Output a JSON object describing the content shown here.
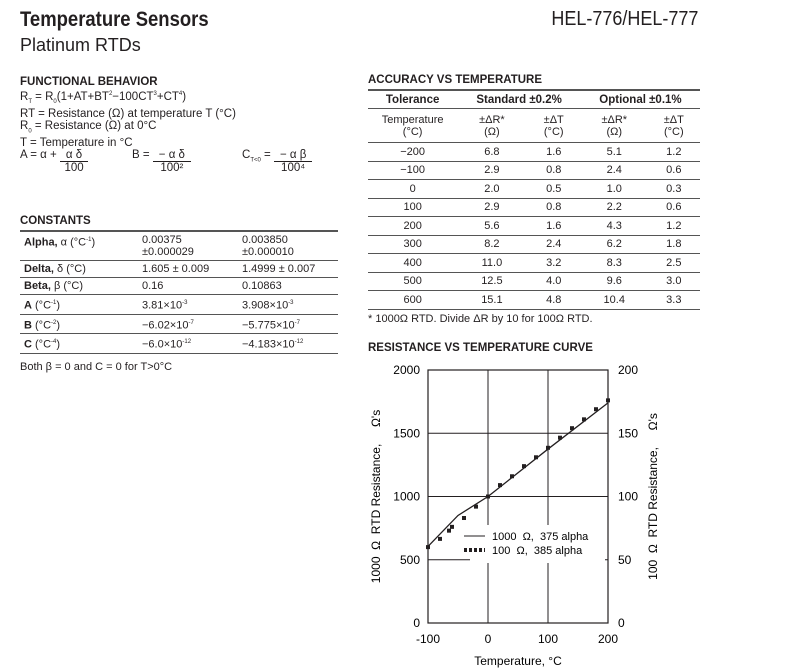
{
  "header": {
    "title": "Temperature Sensors",
    "subtitle": "Platinum RTDs",
    "model": "HEL-776/HEL-777"
  },
  "functional": {
    "heading": "FUNCTIONAL BEHAVIOR",
    "line1": "R<sub>T</sub> = R<sub>0</sub>(1+AT+BT<sup>2</sup>−100CT<sup>3</sup>+CT<sup>4</sup>)",
    "line2": "RT = Resistance (Ω) at temperature T (°C)",
    "line3": "R<sub>0</sub> = Resistance (Ω) at 0°C",
    "line4": "T = Temperature in °C",
    "a_lhs": "A = α + ",
    "a_num": "α δ",
    "a_den": "100",
    "b_lhs": "B = ",
    "b_num": "− α δ",
    "b_den": "100²",
    "c_lhs": "C<sub>T<0</sub> = ",
    "c_num": "− α β",
    "c_den": "100⁴"
  },
  "constants": {
    "heading": "CONSTANTS",
    "rows": [
      [
        "<b>Alpha,</b> α (°C<sup>-1</sup>)",
        "0.00375<br>±0.000029",
        "0.003850<br>±0.000010"
      ],
      [
        "<b>Delta,</b> δ (°C)",
        "1.605 ± 0.009",
        "1.4999 ± 0.007"
      ],
      [
        "<b>Beta,</b> β (°C)",
        "0.16",
        "0.10863"
      ],
      [
        "<b>A</b> (°C<sup>-1</sup>)",
        "3.81×10<sup>-3</sup>",
        "3.908×10<sup>-3</sup>"
      ],
      [
        "<b>B</b> (°C<sup>-2</sup>)",
        "−6.02×10<sup>-7</sup>",
        "−5.775×10<sup>-7</sup>"
      ],
      [
        "<b>C</b> (°C<sup>-4</sup>)",
        "−6.0×10<sup>-12</sup>",
        "−4.183×10<sup>-12</sup>"
      ]
    ],
    "note": "Both β = 0 and C = 0 for T>0°C"
  },
  "accuracy": {
    "heading": "ACCURACY VS TEMPERATURE",
    "h1": [
      "Tolerance",
      "Standard ±0.2%",
      "Optional ±0.1%"
    ],
    "h2": [
      "Temperature<br>(°C)",
      "±ΔR*<br>(Ω)",
      "±ΔT<br>(°C)",
      "±ΔR*<br>(Ω)",
      "±ΔT<br>(°C)"
    ],
    "rows": [
      [
        "−200",
        "6.8",
        "1.6",
        "5.1",
        "1.2"
      ],
      [
        "−100",
        "2.9",
        "0.8",
        "2.4",
        "0.6"
      ],
      [
        "0",
        "2.0",
        "0.5",
        "1.0",
        "0.3"
      ],
      [
        "100",
        "2.9",
        "0.8",
        "2.2",
        "0.6"
      ],
      [
        "200",
        "5.6",
        "1.6",
        "4.3",
        "1.2"
      ],
      [
        "300",
        "8.2",
        "2.4",
        "6.2",
        "1.8"
      ],
      [
        "400",
        "11.0",
        "3.2",
        "8.3",
        "2.5"
      ],
      [
        "500",
        "12.5",
        "4.0",
        "9.6",
        "3.0"
      ],
      [
        "600",
        "15.1",
        "4.8",
        "10.4",
        "3.3"
      ]
    ],
    "note": "* 1000Ω RTD. Divide ΔR by 10 for 100Ω RTD."
  },
  "chart_data": {
    "type": "line",
    "title": "RESISTANCE VS TEMPERATURE CURVE",
    "xlabel": "Temperature, °C",
    "ylabel": "1000  Ω  RTD Resistance,     Ω's",
    "y2label": "100  Ω  RTD Resistance,     Ω's",
    "xlim": [
      -100,
      200
    ],
    "ylim": [
      0,
      2000
    ],
    "y2lim": [
      0,
      200
    ],
    "xticks": [
      "-100",
      "0",
      "100",
      "200"
    ],
    "yticks": [
      "0",
      "500",
      "1000",
      "1500",
      "2000"
    ],
    "y2ticks": [
      "0",
      "50",
      "100",
      "150",
      "200"
    ],
    "grid": true,
    "legend": "center",
    "series": [
      {
        "name": "1000  Ω,  375 alpha",
        "style": "solid",
        "x": [
          -100,
          -50,
          0,
          100,
          200
        ],
        "y": [
          605,
          850,
          1000,
          1375,
          1740
        ]
      },
      {
        "name": "100  Ω,  385 alpha",
        "style": "dotted",
        "x": [
          -100,
          -80,
          -65,
          -60,
          -40,
          -20,
          0,
          20,
          40,
          60,
          80,
          100,
          120,
          140,
          160,
          180,
          200
        ],
        "y": [
          600,
          665,
          730,
          760,
          830,
          920,
          1000,
          1090,
          1160,
          1240,
          1310,
          1385,
          1465,
          1540,
          1610,
          1690,
          1760
        ]
      }
    ]
  }
}
